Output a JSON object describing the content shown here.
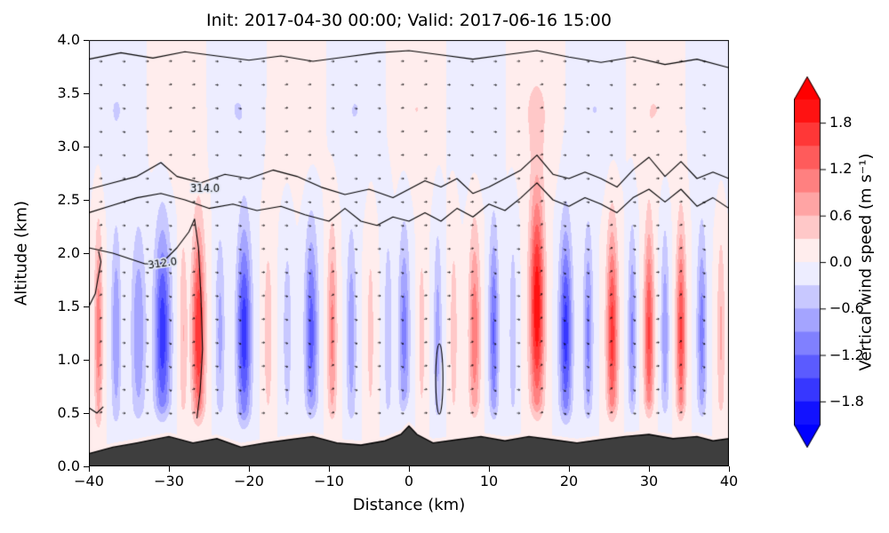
{
  "title": "Init: 2017-04-30 00:00; Valid: 2017-06-16 15:00",
  "axes": {
    "xlabel": "Distance (km)",
    "ylabel": "Altitude (km)",
    "x_ticks": [
      {
        "v": -40,
        "label": "−40"
      },
      {
        "v": -30,
        "label": "−30"
      },
      {
        "v": -20,
        "label": "−20"
      },
      {
        "v": -10,
        "label": "−10"
      },
      {
        "v": 0,
        "label": "0"
      },
      {
        "v": 10,
        "label": "10"
      },
      {
        "v": 20,
        "label": "20"
      },
      {
        "v": 30,
        "label": "30"
      },
      {
        "v": 40,
        "label": "40"
      }
    ],
    "y_ticks": [
      {
        "v": 0.0,
        "label": "0.0"
      },
      {
        "v": 0.5,
        "label": "0.5"
      },
      {
        "v": 1.0,
        "label": "1.0"
      },
      {
        "v": 1.5,
        "label": "1.5"
      },
      {
        "v": 2.0,
        "label": "2.0"
      },
      {
        "v": 2.5,
        "label": "2.5"
      },
      {
        "v": 3.0,
        "label": "3.0"
      },
      {
        "v": 3.5,
        "label": "3.5"
      },
      {
        "v": 4.0,
        "label": "4.0"
      }
    ]
  },
  "colorbar": {
    "label": "Vertical wind speed (m s⁻¹)",
    "ticks": [
      {
        "v": 1.8,
        "label": "1.8"
      },
      {
        "v": 1.2,
        "label": "1.2"
      },
      {
        "v": 0.6,
        "label": "0.6"
      },
      {
        "v": 0.0,
        "label": "0.0"
      },
      {
        "v": -0.6,
        "label": "−0.6"
      },
      {
        "v": -1.2,
        "label": "−1.2"
      },
      {
        "v": -1.8,
        "label": "−1.8"
      }
    ],
    "vmin": -2.1,
    "vmax": 2.1,
    "step": 0.3,
    "cmap": "bwr",
    "over_color": "#ff0000",
    "under_color": "#0000ff"
  },
  "chart_data": {
    "type": "heatmap",
    "title": "Init: 2017-04-30 00:00; Valid: 2017-06-16 15:00",
    "xlabel": "Distance (km)",
    "ylabel": "Altitude (km)",
    "colorbar_label": "Vertical wind speed (m s⁻¹)",
    "x_range": [
      -40,
      40
    ],
    "z_range": [
      0,
      4
    ],
    "vmin": -2.1,
    "vmax": 2.1,
    "levels_step": 0.3,
    "terrain_color": "#3e3e3e",
    "updraft_bands": [
      {
        "c": -38.8,
        "s": 0.5,
        "a": 1.1
      },
      {
        "c": -36.6,
        "s": 0.6,
        "a": -0.9
      },
      {
        "c": -33.8,
        "s": 0.9,
        "a": -0.9
      },
      {
        "c": -30.8,
        "s": 1.0,
        "a": -1.7
      },
      {
        "c": -28.2,
        "s": 0.5,
        "a": 0.6
      },
      {
        "c": -26.3,
        "s": 0.8,
        "a": 1.8
      },
      {
        "c": -23.6,
        "s": 0.6,
        "a": -0.7
      },
      {
        "c": -20.6,
        "s": 0.9,
        "a": -1.7
      },
      {
        "c": -17.6,
        "s": 0.6,
        "a": 0.5
      },
      {
        "c": -15.2,
        "s": 0.6,
        "a": -0.5
      },
      {
        "c": -12.2,
        "s": 0.8,
        "a": -1.35
      },
      {
        "c": -9.6,
        "s": 0.6,
        "a": 1.0
      },
      {
        "c": -7.2,
        "s": 0.6,
        "a": -0.85
      },
      {
        "c": -4.8,
        "s": 0.5,
        "a": 0.45
      },
      {
        "c": -2.6,
        "s": 0.5,
        "a": -0.6
      },
      {
        "c": -0.6,
        "s": 0.7,
        "a": -1.05
      },
      {
        "c": 1.6,
        "s": 0.5,
        "a": 0.45
      },
      {
        "c": 3.6,
        "s": 0.5,
        "a": -0.75
      },
      {
        "c": 5.6,
        "s": 0.5,
        "a": 0.5
      },
      {
        "c": 8.2,
        "s": 0.7,
        "a": 1.15
      },
      {
        "c": 10.6,
        "s": 0.6,
        "a": -1.25
      },
      {
        "c": 13.0,
        "s": 0.5,
        "a": -0.55
      },
      {
        "c": 16.0,
        "s": 0.9,
        "a": 2.05,
        "zp": 1.5,
        "zw": 1.05
      },
      {
        "c": 19.6,
        "s": 0.8,
        "a": -1.65
      },
      {
        "c": 22.4,
        "s": 0.6,
        "a": -1.0
      },
      {
        "c": 25.4,
        "s": 0.7,
        "a": 1.65
      },
      {
        "c": 27.9,
        "s": 0.5,
        "a": -0.95
      },
      {
        "c": 30.0,
        "s": 0.6,
        "a": 1.55
      },
      {
        "c": 32.0,
        "s": 0.5,
        "a": -0.85
      },
      {
        "c": 34.0,
        "s": 0.6,
        "a": 1.55
      },
      {
        "c": 36.6,
        "s": 0.6,
        "a": -1.05
      },
      {
        "c": 39.0,
        "s": 0.5,
        "a": 0.65
      }
    ],
    "upper_wave": {
      "amp": 0.3,
      "k": 0.42,
      "phase": 1.2,
      "z_center": 3.35,
      "z_width": 0.55
    },
    "terrain_km": [
      [
        -40,
        0.12
      ],
      [
        -37,
        0.18
      ],
      [
        -34,
        0.22
      ],
      [
        -30,
        0.28
      ],
      [
        -27,
        0.22
      ],
      [
        -24,
        0.26
      ],
      [
        -21,
        0.18
      ],
      [
        -18,
        0.22
      ],
      [
        -15,
        0.25
      ],
      [
        -12,
        0.28
      ],
      [
        -9,
        0.22
      ],
      [
        -6,
        0.2
      ],
      [
        -3,
        0.24
      ],
      [
        -1,
        0.3
      ],
      [
        0,
        0.38
      ],
      [
        1,
        0.3
      ],
      [
        3,
        0.22
      ],
      [
        6,
        0.25
      ],
      [
        9,
        0.28
      ],
      [
        12,
        0.24
      ],
      [
        15,
        0.28
      ],
      [
        18,
        0.25
      ],
      [
        21,
        0.22
      ],
      [
        24,
        0.25
      ],
      [
        27,
        0.28
      ],
      [
        30,
        0.3
      ],
      [
        33,
        0.26
      ],
      [
        36,
        0.28
      ],
      [
        38,
        0.24
      ],
      [
        40,
        0.26
      ]
    ],
    "theta_contours": {
      "lines": [
        [
          [
            -40,
            3.82
          ],
          [
            -36,
            3.88
          ],
          [
            -32,
            3.83
          ],
          [
            -28,
            3.89
          ],
          [
            -24,
            3.85
          ],
          [
            -20,
            3.81
          ],
          [
            -16,
            3.85
          ],
          [
            -12,
            3.8
          ],
          [
            -8,
            3.84
          ],
          [
            -4,
            3.88
          ],
          [
            0,
            3.9
          ],
          [
            4,
            3.86
          ],
          [
            8,
            3.82
          ],
          [
            12,
            3.86
          ],
          [
            16,
            3.9
          ],
          [
            20,
            3.84
          ],
          [
            24,
            3.79
          ],
          [
            28,
            3.84
          ],
          [
            32,
            3.77
          ],
          [
            36,
            3.82
          ],
          [
            40,
            3.74
          ]
        ],
        [
          [
            -40,
            2.6
          ],
          [
            -37,
            2.66
          ],
          [
            -34,
            2.72
          ],
          [
            -31,
            2.85
          ],
          [
            -29,
            2.72
          ],
          [
            -26,
            2.66
          ],
          [
            -23,
            2.74
          ],
          [
            -20,
            2.7
          ],
          [
            -17,
            2.78
          ],
          [
            -14,
            2.72
          ],
          [
            -11,
            2.62
          ],
          [
            -8,
            2.55
          ],
          [
            -5,
            2.6
          ],
          [
            -2,
            2.52
          ],
          [
            0,
            2.6
          ],
          [
            2,
            2.68
          ],
          [
            4,
            2.62
          ],
          [
            6,
            2.7
          ],
          [
            8,
            2.56
          ],
          [
            10,
            2.62
          ],
          [
            12,
            2.7
          ],
          [
            14,
            2.78
          ],
          [
            16,
            2.92
          ],
          [
            18,
            2.74
          ],
          [
            20,
            2.7
          ],
          [
            22,
            2.76
          ],
          [
            24,
            2.7
          ],
          [
            26,
            2.62
          ],
          [
            28,
            2.78
          ],
          [
            30,
            2.9
          ],
          [
            32,
            2.72
          ],
          [
            34,
            2.86
          ],
          [
            36,
            2.7
          ],
          [
            38,
            2.76
          ],
          [
            40,
            2.7
          ]
        ],
        [
          [
            -40,
            2.38
          ],
          [
            -37,
            2.45
          ],
          [
            -34,
            2.52
          ],
          [
            -31,
            2.56
          ],
          [
            -28,
            2.5
          ],
          [
            -25,
            2.42
          ],
          [
            -22,
            2.46
          ],
          [
            -19,
            2.4
          ],
          [
            -16,
            2.44
          ],
          [
            -13,
            2.36
          ],
          [
            -10,
            2.3
          ],
          [
            -8,
            2.42
          ],
          [
            -6,
            2.3
          ],
          [
            -4,
            2.26
          ],
          [
            -2,
            2.34
          ],
          [
            0,
            2.3
          ],
          [
            2,
            2.38
          ],
          [
            4,
            2.3
          ],
          [
            6,
            2.42
          ],
          [
            8,
            2.34
          ],
          [
            10,
            2.46
          ],
          [
            12,
            2.4
          ],
          [
            14,
            2.52
          ],
          [
            16,
            2.66
          ],
          [
            18,
            2.5
          ],
          [
            20,
            2.44
          ],
          [
            22,
            2.52
          ],
          [
            24,
            2.46
          ],
          [
            26,
            2.38
          ],
          [
            28,
            2.52
          ],
          [
            30,
            2.6
          ],
          [
            32,
            2.48
          ],
          [
            34,
            2.6
          ],
          [
            36,
            2.44
          ],
          [
            38,
            2.52
          ],
          [
            40,
            2.42
          ]
        ],
        [
          [
            -40,
            2.05
          ],
          [
            -37,
            2.0
          ],
          [
            -35,
            1.95
          ],
          [
            -33,
            1.9
          ],
          [
            -31,
            1.9
          ],
          [
            -29,
            2.05
          ],
          [
            -27.5,
            2.2
          ],
          [
            -26.8,
            2.32
          ],
          [
            -26.3,
            2.05
          ],
          [
            -26.0,
            1.6
          ],
          [
            -25.8,
            1.1
          ],
          [
            -26.1,
            0.7
          ],
          [
            -26.5,
            0.45
          ]
        ],
        [
          [
            -40,
            1.5
          ],
          [
            -39.2,
            1.62
          ],
          [
            -38.5,
            1.92
          ],
          [
            -38.8,
            2.02
          ]
        ],
        [
          [
            -40,
            0.55
          ],
          [
            -39,
            0.5
          ],
          [
            -38.2,
            0.56
          ]
        ]
      ],
      "closed_low": {
        "cx": 3.8,
        "cz": 0.82,
        "rx": 0.45,
        "rz": 0.33
      }
    },
    "contour_labels": [
      {
        "text": "314.0",
        "x": -25.5,
        "z": 2.6,
        "rot": 0
      },
      {
        "text": "312.0",
        "x": -30.8,
        "z": 1.9,
        "rot": -8
      }
    ],
    "quiver": {
      "dx_km": 2.9,
      "dz_km": 0.22
    }
  }
}
